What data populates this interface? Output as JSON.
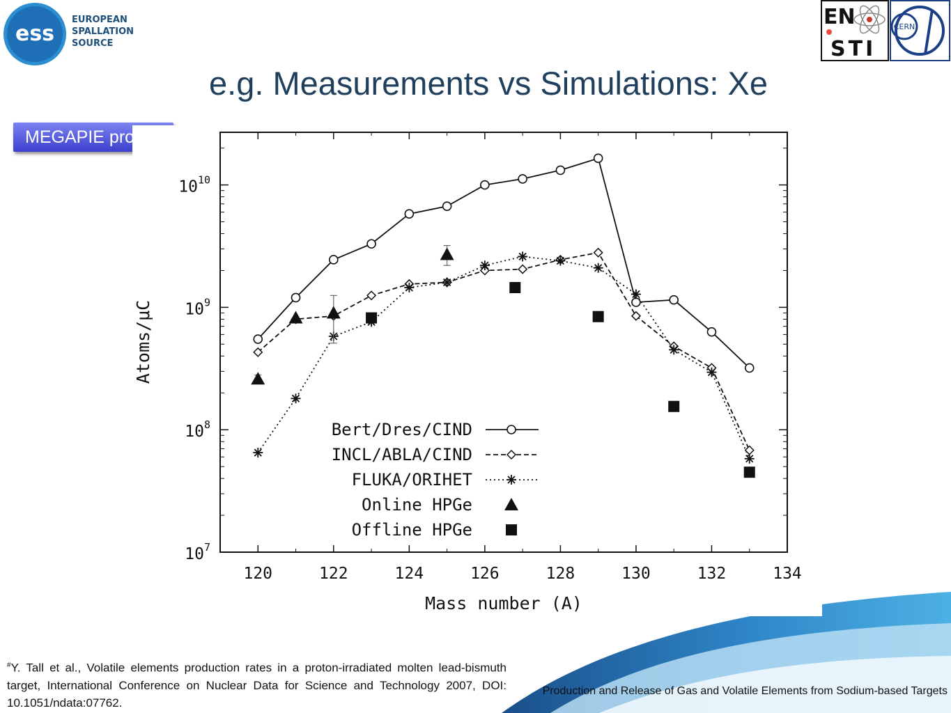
{
  "header": {
    "ess_logo_text": [
      "EUROPEAN",
      "SPALLATION",
      "SOURCE"
    ],
    "ess_badge": "ess",
    "right_logo_text": [
      "EN",
      "STI"
    ],
    "cern_badge": "CERN"
  },
  "slide": {
    "title": "e.g. Measurements vs Simulations: Xe",
    "project_badge": "MEGAPIE project",
    "footnote_mark": "#",
    "footnote": "Y. Tall et al., Volatile elements production rates in a proton-irradiated molten lead-bismuth target, International Conference on Nuclear Data for Science and Technology 2007, DOI: 10.1051/ndata:07762.",
    "footer": "Production and Release of Gas and Volatile Elements from Sodium-based Targets"
  },
  "colors": {
    "title": "#1f3f5c",
    "badge_top": "#7c83f0",
    "badge_bottom": "#3b3fcd",
    "wave_dark": "#1a4f8a",
    "wave_light": "#4db1e4"
  },
  "chart_data": {
    "type": "line",
    "xlabel": "Mass number (A)",
    "ylabel": "Atoms/μC",
    "xlim": [
      119,
      134
    ],
    "ylim_log10": [
      7,
      10.43
    ],
    "yscale": "log",
    "x_ticks": [
      120,
      122,
      124,
      126,
      128,
      130,
      132,
      134
    ],
    "y_ticks": [
      {
        "base": "10",
        "exp": "7"
      },
      {
        "base": "10",
        "exp": "8"
      },
      {
        "base": "10",
        "exp": "9"
      },
      {
        "base": "10",
        "exp": "10"
      }
    ],
    "grid": false,
    "legend_position": "bottom-center",
    "series": [
      {
        "name": "Bert/Dres/CIND",
        "style": "solid",
        "marker": "circle",
        "x": [
          120,
          121,
          122,
          123,
          124,
          125,
          126,
          127,
          128,
          129,
          130,
          131,
          132,
          133
        ],
        "y": [
          550000000.0,
          1200000000.0,
          2450000000.0,
          3300000000.0,
          5800000000.0,
          6700000000.0,
          10000000000.0,
          11200000000.0,
          13200000000.0,
          16500000000.0,
          1100000000.0,
          1150000000.0,
          630000000.0,
          320000000.0
        ]
      },
      {
        "name": "INCL/ABLA/CIND",
        "style": "dashed",
        "marker": "diamond",
        "x": [
          120,
          121,
          122,
          123,
          124,
          125,
          126,
          127,
          128,
          129,
          130,
          131,
          132,
          133
        ],
        "y": [
          430000000.0,
          800000000.0,
          850000000.0,
          1250000000.0,
          1550000000.0,
          1600000000.0,
          2000000000.0,
          2050000000.0,
          2450000000.0,
          2800000000.0,
          850000000.0,
          480000000.0,
          320000000.0,
          68000000.0
        ]
      },
      {
        "name": "FLUKA/ORIHET",
        "style": "dotted",
        "marker": "asterisk",
        "x": [
          120,
          121,
          122,
          123,
          124,
          125,
          126,
          127,
          128,
          129,
          130,
          131,
          132,
          133
        ],
        "y": [
          65000000.0,
          180000000.0,
          580000000.0,
          760000000.0,
          1450000000.0,
          1600000000.0,
          2200000000.0,
          2600000000.0,
          2400000000.0,
          2100000000.0,
          1280000000.0,
          450000000.0,
          295000000.0,
          58000000.0
        ]
      },
      {
        "name": "Online HPGe",
        "style": "none",
        "marker": "triangle",
        "x": [
          120,
          121,
          122,
          125
        ],
        "y": [
          260000000.0,
          820000000.0,
          900000000.0,
          2700000000.0
        ],
        "err_low": [
          240000000.0,
          null,
          510000000.0,
          2200000000.0
        ],
        "err_high": [
          280000000.0,
          null,
          1250000000.0,
          3200000000.0
        ]
      },
      {
        "name": "Offline HPGe",
        "style": "none",
        "marker": "square",
        "x": [
          123,
          126.8,
          129,
          131,
          133
        ],
        "y": [
          820000000.0,
          1450000000.0,
          840000000.0,
          155000000.0,
          45000000.0
        ]
      }
    ]
  }
}
